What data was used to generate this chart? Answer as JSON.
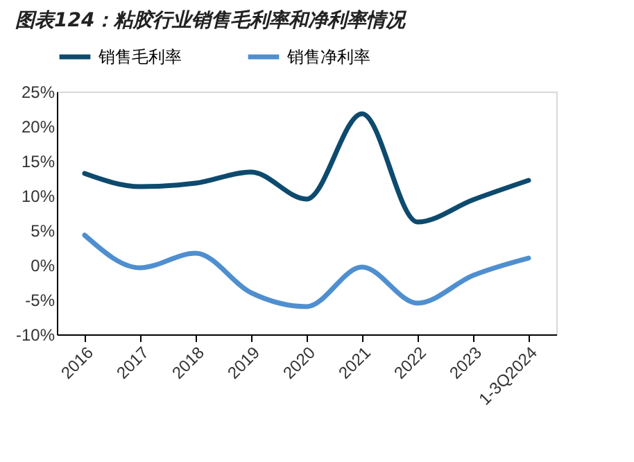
{
  "chart_data": {
    "type": "line",
    "title": "图表124：粘胶行业销售毛利率和净利率情况",
    "categories": [
      "2016",
      "2017",
      "2018",
      "2019",
      "2020",
      "2021",
      "2022",
      "2023",
      "1-3Q2024"
    ],
    "series": [
      {
        "name": "销售毛利率",
        "color": "#0d4a6e",
        "values": [
          13.2,
          11.3,
          11.8,
          13.4,
          9.5,
          21.8,
          6.2,
          9.4,
          12.2
        ]
      },
      {
        "name": "销售净利率",
        "color": "#4f8fd0",
        "values": [
          4.3,
          -0.4,
          1.7,
          -4.0,
          -6.0,
          -0.3,
          -5.5,
          -1.5,
          1.0
        ]
      }
    ],
    "ylim": [
      -10,
      25
    ],
    "yticks": [
      {
        "value": -10,
        "label": "-10%"
      },
      {
        "value": -5,
        "label": "-5%"
      },
      {
        "value": 0,
        "label": "0%"
      },
      {
        "value": 5,
        "label": "5%"
      },
      {
        "value": 10,
        "label": "10%"
      },
      {
        "value": 15,
        "label": "15%"
      },
      {
        "value": 20,
        "label": "20%"
      },
      {
        "value": 25,
        "label": "25%"
      }
    ],
    "grid": false,
    "legend": "top",
    "marker": "none",
    "line_style": "solid"
  }
}
